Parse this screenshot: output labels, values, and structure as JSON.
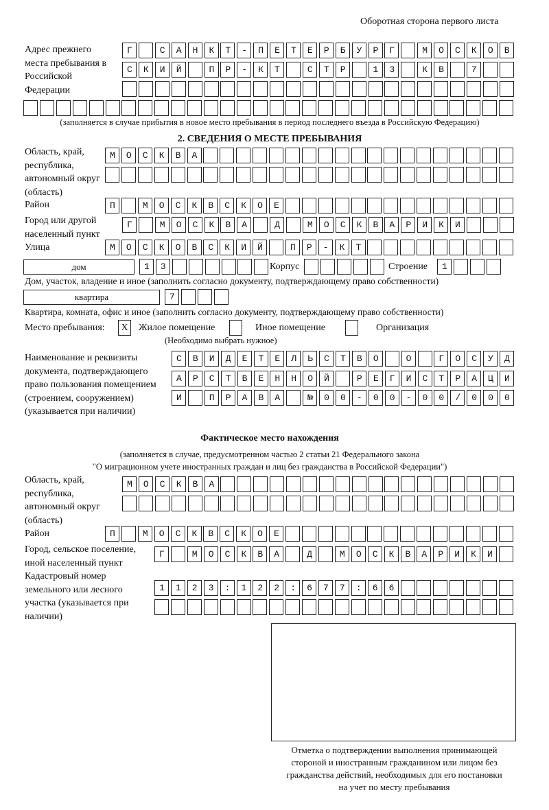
{
  "header": {
    "side_label": "Оборотная сторона первого листа"
  },
  "previous_address": {
    "label": "Адрес прежнего места пребывания в Российской Федерации",
    "rows": [
      "Г САНКТ-ПЕТЕРБУРГ МОСКОВ",
      "СКИЙ ПР-КТ СТР 13 КВ 7",
      "",
      ""
    ],
    "note": "(заполняется в случае прибытия в новое место пребывания в период последнего въезда в Российскую Федерацию)"
  },
  "section2": {
    "title": "2. СВЕДЕНИЯ О МЕСТЕ ПРЕБЫВАНИЯ",
    "region": {
      "label": "Область, край, республика, автономный округ (область)",
      "rows": [
        "МОСКВА",
        ""
      ]
    },
    "district": {
      "label": "Район",
      "value": "П МОСКВСКОЕ"
    },
    "city": {
      "label": "Город или другой населенный пункт",
      "value": "Г МОСКВА Д МОСКВАРИКИ"
    },
    "street": {
      "label": "Улица",
      "value": "МОСКОВСКИЙ ПР-КТ"
    },
    "house": {
      "type": "дом",
      "number": "13",
      "korpus_label": "Корпус",
      "korpus": "",
      "stroenie_label": "Строение",
      "stroenie": "1",
      "note": "Дом, участок, владение и иное (заполнить согласно документу, подтверждающему право собственности)"
    },
    "apartment": {
      "type": "квартира",
      "number": "7",
      "note": "Квартира, комната, офис и иное (заполнить согласно документу, подтверждающему право собственности)"
    },
    "place": {
      "label": "Место пребывания:",
      "options": [
        {
          "mark": "X",
          "label": "Жилое помещение",
          "checked": true
        },
        {
          "mark": "",
          "label": "Иное помещение",
          "checked": false
        },
        {
          "mark": "",
          "label": "Организация",
          "checked": false
        }
      ],
      "note": "(Необходимо выбрать нужное)"
    },
    "document": {
      "label": "Наименование и реквизиты документа, подтверждающего право пользования помещением (строением, сооружением) (указывается при наличии)",
      "rows": [
        "СВИДЕТЕЛЬСТВО О ГОСУД",
        "АРСТВЕННОЙ РЕГИСТРАЦИ",
        "И ПРАВА №00-00-00/000"
      ]
    }
  },
  "actual": {
    "title": "Фактическое место нахождения",
    "note1": "(заполняется в случае, предусмотренном частью 2 статьи 21 Федерального закона",
    "note2": "\"О миграционном учете иностранных граждан и лиц без гражданства в Российской Федерации\")",
    "region": {
      "label": "Область, край, республика, автономный округ (область)",
      "rows": [
        "МОСКВА",
        ""
      ]
    },
    "district": {
      "label": "Район",
      "value": "П МОСКВСКОЕ"
    },
    "city": {
      "label": "Город, сельское поселение, иной населенный пункт",
      "value": "Г МОСКВА Д МОСКВАРИКИ"
    },
    "cadastral": {
      "label": "Кадастровый номер земельного или лесного участка (указывается при наличии)",
      "rows": [
        "1123:122:677:66",
        ""
      ]
    }
  },
  "confirmation": {
    "caption": [
      "Отметка о подтверждении выполнения принимающей",
      "стороной и иностранным гражданином или лицом без",
      "гражданства действий, необходимых для его постановки",
      "на учет по месту пребывания"
    ]
  }
}
